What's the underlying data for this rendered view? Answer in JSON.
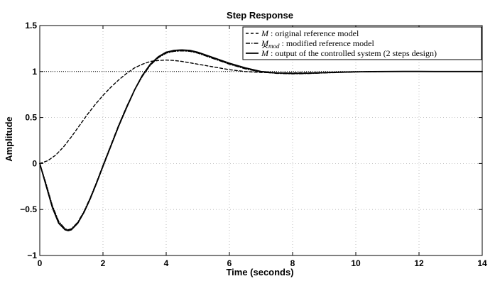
{
  "chart_data": {
    "type": "line",
    "title": "Step Response",
    "xlabel": "Time (seconds)",
    "ylabel": "Amplitude",
    "xlim": [
      0,
      14
    ],
    "ylim": [
      -1,
      1.5
    ],
    "xticks": [
      0,
      2,
      4,
      6,
      8,
      10,
      12,
      14
    ],
    "xtick_labels": [
      "0",
      "2",
      "4",
      "6",
      "8",
      "10",
      "12",
      "14"
    ],
    "yticks": [
      -1,
      -0.5,
      0,
      0.5,
      1,
      1.5
    ],
    "ytick_labels": [
      "−1",
      "−0.5",
      "0",
      "0.5",
      "1",
      "1.5"
    ],
    "grid": true,
    "legend_position": "top-right",
    "reference_line": {
      "y": 1,
      "style": "dotted"
    },
    "series": [
      {
        "name": "M : original reference model",
        "style": "dashed",
        "color": "#000000",
        "x": [
          0,
          0.25,
          0.5,
          0.75,
          1,
          1.25,
          1.5,
          1.75,
          2,
          2.25,
          2.5,
          2.75,
          3,
          3.25,
          3.5,
          3.75,
          4,
          4.25,
          4.5,
          4.75,
          5,
          5.5,
          6,
          6.5,
          7,
          7.5,
          8,
          8.5,
          9,
          9.5,
          10,
          10.5,
          11,
          11.5,
          12,
          12.5,
          13,
          13.5,
          14
        ],
        "y": [
          0,
          0.03,
          0.09,
          0.18,
          0.29,
          0.41,
          0.53,
          0.64,
          0.74,
          0.83,
          0.91,
          0.98,
          1.04,
          1.08,
          1.11,
          1.12,
          1.125,
          1.12,
          1.11,
          1.095,
          1.08,
          1.05,
          1.02,
          1.0,
          0.99,
          0.985,
          0.985,
          0.987,
          0.99,
          0.994,
          0.997,
          0.999,
          1.0,
          1.001,
          1.001,
          1.0,
          1.0,
          1.0,
          1.0
        ]
      },
      {
        "name": "M_mod : modified reference model",
        "style": "dashdot",
        "color": "#000000",
        "x": [
          0,
          0.2,
          0.4,
          0.6,
          0.8,
          0.9,
          1,
          1.2,
          1.4,
          1.6,
          1.8,
          2,
          2.25,
          2.5,
          2.75,
          3,
          3.25,
          3.5,
          3.75,
          4,
          4.25,
          4.5,
          4.75,
          5,
          5.25,
          5.5,
          6,
          6.5,
          7,
          7.5,
          8,
          8.5,
          9,
          9.5,
          10,
          10.5,
          11,
          11.5,
          12,
          12.5,
          13,
          13.5,
          14
        ],
        "y": [
          0,
          -0.22,
          -0.46,
          -0.63,
          -0.71,
          -0.72,
          -0.71,
          -0.64,
          -0.52,
          -0.37,
          -0.2,
          -0.02,
          0.2,
          0.42,
          0.62,
          0.8,
          0.95,
          1.07,
          1.15,
          1.2,
          1.22,
          1.225,
          1.22,
          1.2,
          1.17,
          1.14,
          1.08,
          1.03,
          0.995,
          0.98,
          0.975,
          0.978,
          0.985,
          0.99,
          0.995,
          0.998,
          1.0,
          1.001,
          1.001,
          1.0,
          1.0,
          1.0,
          1.0
        ]
      },
      {
        "name": "M̂ : output of the controlled system (2 steps design)",
        "style": "solid",
        "color": "#000000",
        "x": [
          0,
          0.2,
          0.4,
          0.6,
          0.8,
          0.9,
          1,
          1.2,
          1.4,
          1.6,
          1.8,
          2,
          2.25,
          2.5,
          2.75,
          3,
          3.25,
          3.5,
          3.75,
          4,
          4.25,
          4.5,
          4.75,
          5,
          5.25,
          5.5,
          6,
          6.5,
          7,
          7.5,
          8,
          8.5,
          9,
          9.5,
          10,
          10.5,
          11,
          11.5,
          12,
          12.5,
          13,
          13.5,
          14
        ],
        "y": [
          0,
          -0.24,
          -0.48,
          -0.65,
          -0.72,
          -0.73,
          -0.72,
          -0.65,
          -0.53,
          -0.38,
          -0.21,
          -0.03,
          0.19,
          0.41,
          0.61,
          0.8,
          0.96,
          1.08,
          1.16,
          1.21,
          1.23,
          1.235,
          1.23,
          1.21,
          1.18,
          1.15,
          1.09,
          1.04,
          1.0,
          0.985,
          0.98,
          0.982,
          0.988,
          0.993,
          0.997,
          0.999,
          1.0,
          1.001,
          1.001,
          1.0,
          1.0,
          1.0,
          1.0
        ]
      }
    ]
  },
  "legend": {
    "entries": [
      {
        "symbol": "M",
        "sub": "",
        "hat": false,
        "text": " : original reference model"
      },
      {
        "symbol": "M",
        "sub": "mod",
        "hat": false,
        "text": " : modified reference model"
      },
      {
        "symbol": "M",
        "sub": "",
        "hat": true,
        "text": " : output of the controlled system (2 steps design)"
      }
    ]
  }
}
